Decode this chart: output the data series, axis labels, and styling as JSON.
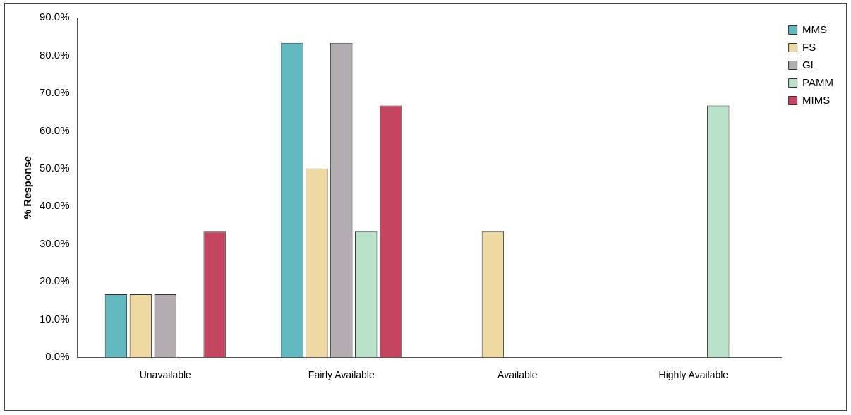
{
  "chart_data": {
    "type": "bar",
    "ylabel": "% Response",
    "categories": [
      "Unavailable",
      "Fairly Available",
      "Available",
      "Highly Available"
    ],
    "series": [
      {
        "name": "MMS",
        "color": "#62b9bf",
        "values": [
          16.7,
          83.3,
          0,
          0
        ]
      },
      {
        "name": "FS",
        "color": "#efd9a3",
        "values": [
          16.7,
          50,
          33.3,
          0
        ]
      },
      {
        "name": "GL",
        "color": "#b3adb1",
        "values": [
          16.7,
          83.3,
          0,
          0
        ]
      },
      {
        "name": "PAMM",
        "color": "#b9e0c9",
        "values": [
          0,
          33.3,
          0,
          66.7
        ]
      },
      {
        "name": "MIMS",
        "color": "#c34560",
        "values": [
          33.3,
          66.7,
          0,
          0
        ]
      }
    ],
    "ylim": [
      0,
      90
    ],
    "yticks": [
      {
        "value": 0,
        "label": "0.0%"
      },
      {
        "value": 10,
        "label": "10.0%"
      },
      {
        "value": 20,
        "label": "20.0%"
      },
      {
        "value": 30,
        "label": "30.0%"
      },
      {
        "value": 40,
        "label": "40.0%"
      },
      {
        "value": 50,
        "label": "50.0%"
      },
      {
        "value": 60,
        "label": "60.0%"
      },
      {
        "value": 70,
        "label": "70.0%"
      },
      {
        "value": 80,
        "label": "80.0%"
      },
      {
        "value": 90,
        "label": "90.0%"
      }
    ],
    "grid": false,
    "legend": "top right"
  }
}
